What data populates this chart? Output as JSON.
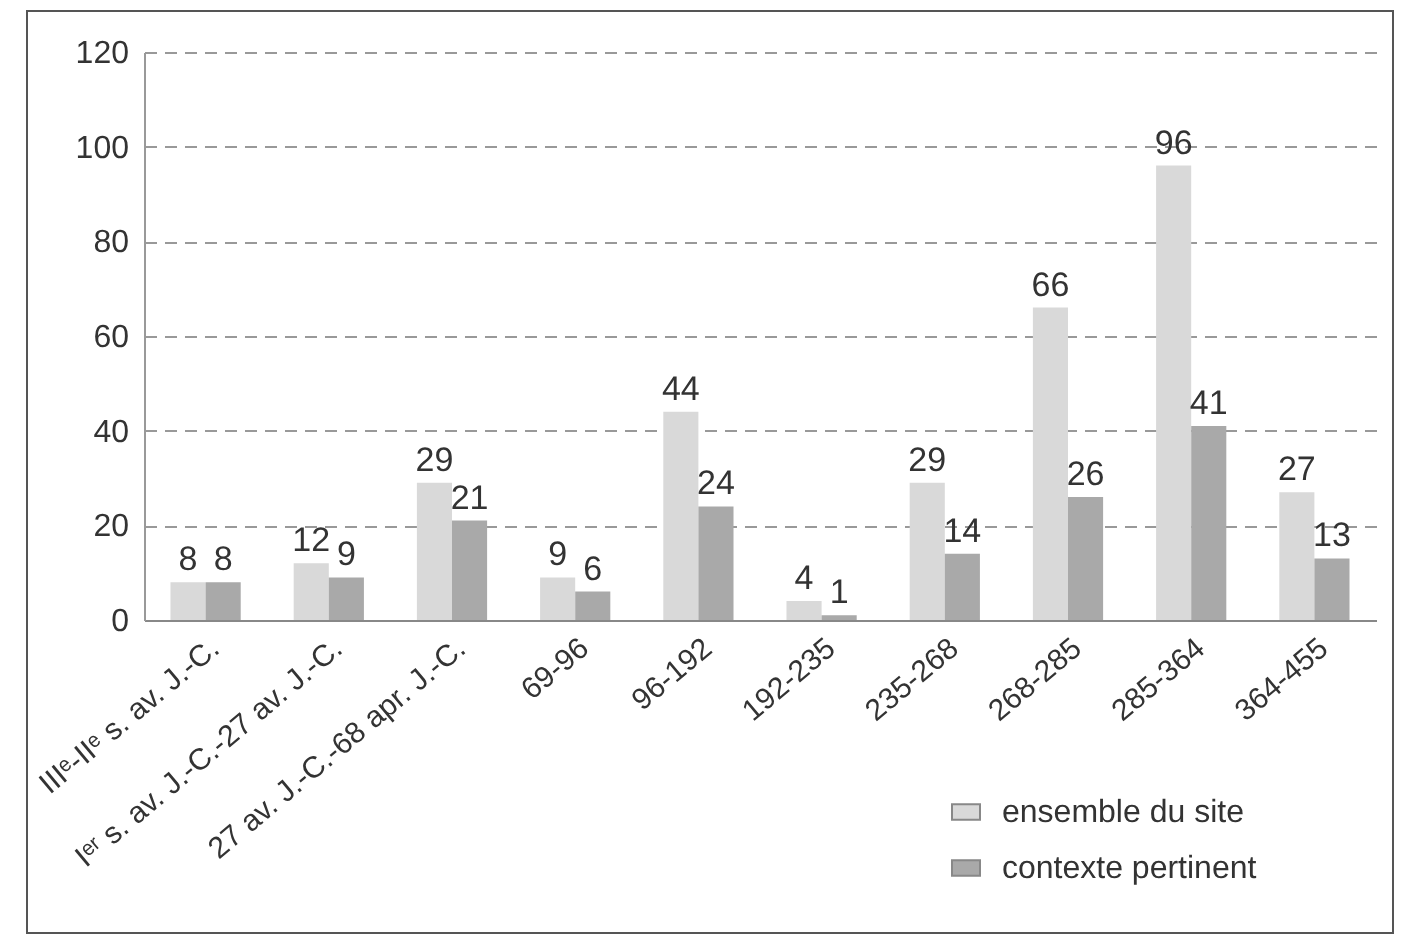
{
  "chart_data": {
    "type": "bar",
    "categories": [
      "IIIᵉ-IIᵉ s. av. J.-C.",
      "Iᵉʳ s. av. J.-C.-27 av. J.-C.",
      "27 av. J.-C.-68 apr. J.-C.",
      "69-96",
      "96-192",
      "192-235",
      "235-268",
      "268-285",
      "285-364",
      "364-455"
    ],
    "series": [
      {
        "name": "ensemble du site",
        "color": "#d9d9d9",
        "values": [
          8,
          12,
          29,
          9,
          44,
          4,
          29,
          66,
          96,
          27
        ]
      },
      {
        "name": "contexte pertinent",
        "color": "#a9a9a9",
        "values": [
          8,
          9,
          21,
          6,
          24,
          1,
          14,
          26,
          41,
          13
        ]
      }
    ],
    "ylim": [
      0,
      120
    ],
    "yticks": [
      0,
      20,
      40,
      60,
      80,
      100,
      120
    ],
    "grid": "y",
    "legend": "bottom right",
    "data_labels": true
  }
}
